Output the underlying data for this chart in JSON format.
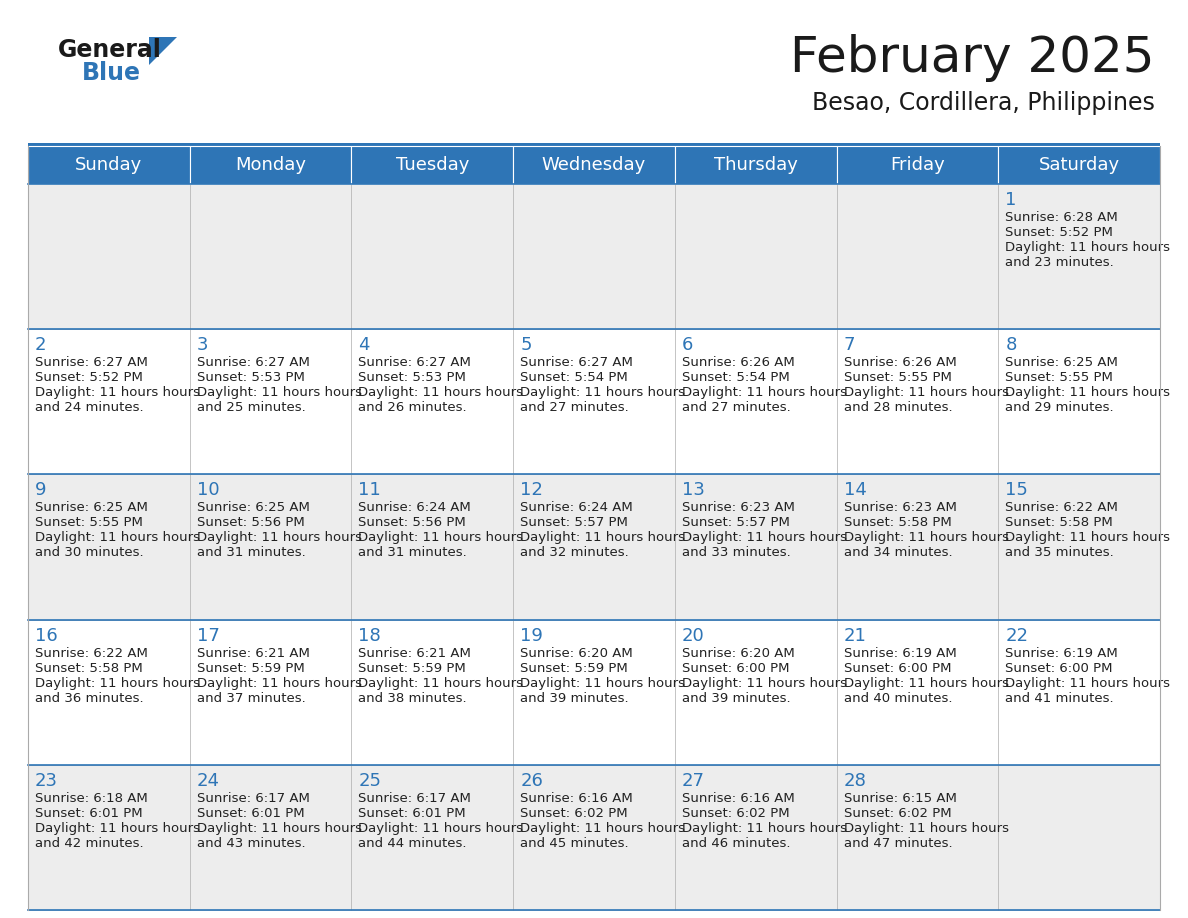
{
  "title": "February 2025",
  "subtitle": "Besao, Cordillera, Philippines",
  "days_of_week": [
    "Sunday",
    "Monday",
    "Tuesday",
    "Wednesday",
    "Thursday",
    "Friday",
    "Saturday"
  ],
  "header_bg": "#2E75B6",
  "header_text": "#FFFFFF",
  "cell_bg_light": "#EDEDED",
  "cell_bg_white": "#FFFFFF",
  "border_color": "#AAAAAA",
  "divider_color": "#2E75B6",
  "text_color": "#222222",
  "day_num_color": "#2E75B6",
  "logo_general_color": "#1a1a1a",
  "logo_blue_color": "#2E75B6",
  "logo_triangle_color": "#2E75B6",
  "calendar_data": [
    [
      null,
      null,
      null,
      null,
      null,
      null,
      {
        "day": 1,
        "sunrise": "6:28 AM",
        "sunset": "5:52 PM",
        "daylight": "11 hours and 23 minutes."
      }
    ],
    [
      {
        "day": 2,
        "sunrise": "6:27 AM",
        "sunset": "5:52 PM",
        "daylight": "11 hours and 24 minutes."
      },
      {
        "day": 3,
        "sunrise": "6:27 AM",
        "sunset": "5:53 PM",
        "daylight": "11 hours and 25 minutes."
      },
      {
        "day": 4,
        "sunrise": "6:27 AM",
        "sunset": "5:53 PM",
        "daylight": "11 hours and 26 minutes."
      },
      {
        "day": 5,
        "sunrise": "6:27 AM",
        "sunset": "5:54 PM",
        "daylight": "11 hours and 27 minutes."
      },
      {
        "day": 6,
        "sunrise": "6:26 AM",
        "sunset": "5:54 PM",
        "daylight": "11 hours and 27 minutes."
      },
      {
        "day": 7,
        "sunrise": "6:26 AM",
        "sunset": "5:55 PM",
        "daylight": "11 hours and 28 minutes."
      },
      {
        "day": 8,
        "sunrise": "6:25 AM",
        "sunset": "5:55 PM",
        "daylight": "11 hours and 29 minutes."
      }
    ],
    [
      {
        "day": 9,
        "sunrise": "6:25 AM",
        "sunset": "5:55 PM",
        "daylight": "11 hours and 30 minutes."
      },
      {
        "day": 10,
        "sunrise": "6:25 AM",
        "sunset": "5:56 PM",
        "daylight": "11 hours and 31 minutes."
      },
      {
        "day": 11,
        "sunrise": "6:24 AM",
        "sunset": "5:56 PM",
        "daylight": "11 hours and 31 minutes."
      },
      {
        "day": 12,
        "sunrise": "6:24 AM",
        "sunset": "5:57 PM",
        "daylight": "11 hours and 32 minutes."
      },
      {
        "day": 13,
        "sunrise": "6:23 AM",
        "sunset": "5:57 PM",
        "daylight": "11 hours and 33 minutes."
      },
      {
        "day": 14,
        "sunrise": "6:23 AM",
        "sunset": "5:58 PM",
        "daylight": "11 hours and 34 minutes."
      },
      {
        "day": 15,
        "sunrise": "6:22 AM",
        "sunset": "5:58 PM",
        "daylight": "11 hours and 35 minutes."
      }
    ],
    [
      {
        "day": 16,
        "sunrise": "6:22 AM",
        "sunset": "5:58 PM",
        "daylight": "11 hours and 36 minutes."
      },
      {
        "day": 17,
        "sunrise": "6:21 AM",
        "sunset": "5:59 PM",
        "daylight": "11 hours and 37 minutes."
      },
      {
        "day": 18,
        "sunrise": "6:21 AM",
        "sunset": "5:59 PM",
        "daylight": "11 hours and 38 minutes."
      },
      {
        "day": 19,
        "sunrise": "6:20 AM",
        "sunset": "5:59 PM",
        "daylight": "11 hours and 39 minutes."
      },
      {
        "day": 20,
        "sunrise": "6:20 AM",
        "sunset": "6:00 PM",
        "daylight": "11 hours and 39 minutes."
      },
      {
        "day": 21,
        "sunrise": "6:19 AM",
        "sunset": "6:00 PM",
        "daylight": "11 hours and 40 minutes."
      },
      {
        "day": 22,
        "sunrise": "6:19 AM",
        "sunset": "6:00 PM",
        "daylight": "11 hours and 41 minutes."
      }
    ],
    [
      {
        "day": 23,
        "sunrise": "6:18 AM",
        "sunset": "6:01 PM",
        "daylight": "11 hours and 42 minutes."
      },
      {
        "day": 24,
        "sunrise": "6:17 AM",
        "sunset": "6:01 PM",
        "daylight": "11 hours and 43 minutes."
      },
      {
        "day": 25,
        "sunrise": "6:17 AM",
        "sunset": "6:01 PM",
        "daylight": "11 hours and 44 minutes."
      },
      {
        "day": 26,
        "sunrise": "6:16 AM",
        "sunset": "6:02 PM",
        "daylight": "11 hours and 45 minutes."
      },
      {
        "day": 27,
        "sunrise": "6:16 AM",
        "sunset": "6:02 PM",
        "daylight": "11 hours and 46 minutes."
      },
      {
        "day": 28,
        "sunrise": "6:15 AM",
        "sunset": "6:02 PM",
        "daylight": "11 hours and 47 minutes."
      },
      null
    ]
  ]
}
